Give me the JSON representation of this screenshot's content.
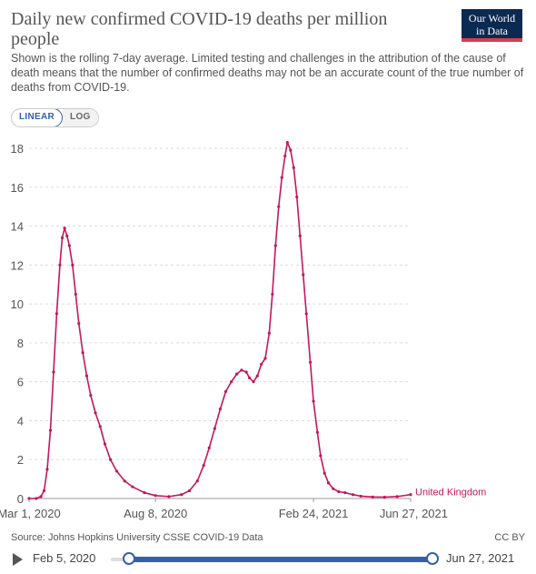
{
  "header": {
    "title": "Daily new confirmed COVID-19 deaths per million people",
    "subtitle": "Shown is the rolling 7-day average. Limited testing and challenges in the attribution of the cause of death means that the number of confirmed deaths may not be an accurate count of the true number of deaths from COVID-19.",
    "logo_line1": "Our World",
    "logo_line2": "in Data"
  },
  "controls": {
    "linear_label": "LINEAR",
    "log_label": "LOG",
    "active_scale": "linear"
  },
  "footer": {
    "source": "Source: Johns Hopkins University CSSE COVID-19 Data",
    "license": "CC BY"
  },
  "timeline": {
    "start_label": "Feb 5, 2020",
    "end_label": "Jun 27, 2021"
  },
  "colors": {
    "series": "#c2185b",
    "grid": "#dddddd",
    "accent": "#3360a9"
  },
  "chart_data": {
    "type": "line",
    "title": "Daily new confirmed COVID-19 deaths per million people",
    "xlabel": "",
    "ylabel": "",
    "x_type": "date",
    "xlim": [
      "2020-03-01",
      "2021-06-27"
    ],
    "ylim": [
      0,
      18
    ],
    "y_ticks": [
      0,
      2,
      4,
      6,
      8,
      10,
      12,
      14,
      16,
      18
    ],
    "x_ticks": [
      {
        "date": "2020-03-01",
        "label": "Mar 1, 2020"
      },
      {
        "date": "2020-08-08",
        "label": "Aug 8, 2020"
      },
      {
        "date": "2021-02-24",
        "label": "Feb 24, 2021"
      },
      {
        "date": "2021-06-27",
        "label": "Jun 27, 2021"
      }
    ],
    "grid": true,
    "series": [
      {
        "name": "United Kingdom",
        "x": [
          "2020-03-01",
          "2020-03-10",
          "2020-03-16",
          "2020-03-20",
          "2020-03-24",
          "2020-03-28",
          "2020-04-01",
          "2020-04-05",
          "2020-04-09",
          "2020-04-12",
          "2020-04-15",
          "2020-04-18",
          "2020-04-21",
          "2020-04-25",
          "2020-04-29",
          "2020-05-03",
          "2020-05-08",
          "2020-05-13",
          "2020-05-18",
          "2020-05-24",
          "2020-05-30",
          "2020-06-05",
          "2020-06-12",
          "2020-06-20",
          "2020-06-30",
          "2020-07-10",
          "2020-07-25",
          "2020-08-08",
          "2020-08-25",
          "2020-09-10",
          "2020-09-20",
          "2020-09-30",
          "2020-10-08",
          "2020-10-15",
          "2020-10-22",
          "2020-10-29",
          "2020-11-05",
          "2020-11-12",
          "2020-11-19",
          "2020-11-25",
          "2020-12-01",
          "2020-12-05",
          "2020-12-10",
          "2020-12-15",
          "2020-12-20",
          "2020-12-25",
          "2020-12-30",
          "2021-01-03",
          "2021-01-07",
          "2021-01-11",
          "2021-01-15",
          "2021-01-19",
          "2021-01-22",
          "2021-01-26",
          "2021-01-30",
          "2021-02-03",
          "2021-02-07",
          "2021-02-11",
          "2021-02-15",
          "2021-02-20",
          "2021-02-24",
          "2021-03-01",
          "2021-03-05",
          "2021-03-10",
          "2021-03-15",
          "2021-03-21",
          "2021-03-28",
          "2021-04-05",
          "2021-04-15",
          "2021-04-25",
          "2021-05-10",
          "2021-05-25",
          "2021-06-10",
          "2021-06-27"
        ],
        "values": [
          0,
          0,
          0.1,
          0.4,
          1.5,
          3.5,
          6.5,
          9.5,
          12.0,
          13.4,
          13.9,
          13.5,
          13.0,
          12.0,
          10.5,
          9.0,
          7.5,
          6.3,
          5.3,
          4.4,
          3.7,
          2.8,
          2.0,
          1.4,
          0.9,
          0.6,
          0.3,
          0.15,
          0.1,
          0.2,
          0.4,
          0.9,
          1.7,
          2.6,
          3.6,
          4.6,
          5.5,
          6.0,
          6.4,
          6.6,
          6.5,
          6.2,
          6.0,
          6.3,
          6.9,
          7.2,
          8.5,
          10.5,
          13.0,
          15.0,
          16.5,
          17.6,
          18.3,
          17.9,
          17.0,
          15.5,
          13.5,
          11.5,
          9.5,
          7.0,
          5.0,
          3.4,
          2.2,
          1.3,
          0.8,
          0.5,
          0.35,
          0.3,
          0.2,
          0.12,
          0.08,
          0.07,
          0.1,
          0.2
        ]
      }
    ]
  }
}
